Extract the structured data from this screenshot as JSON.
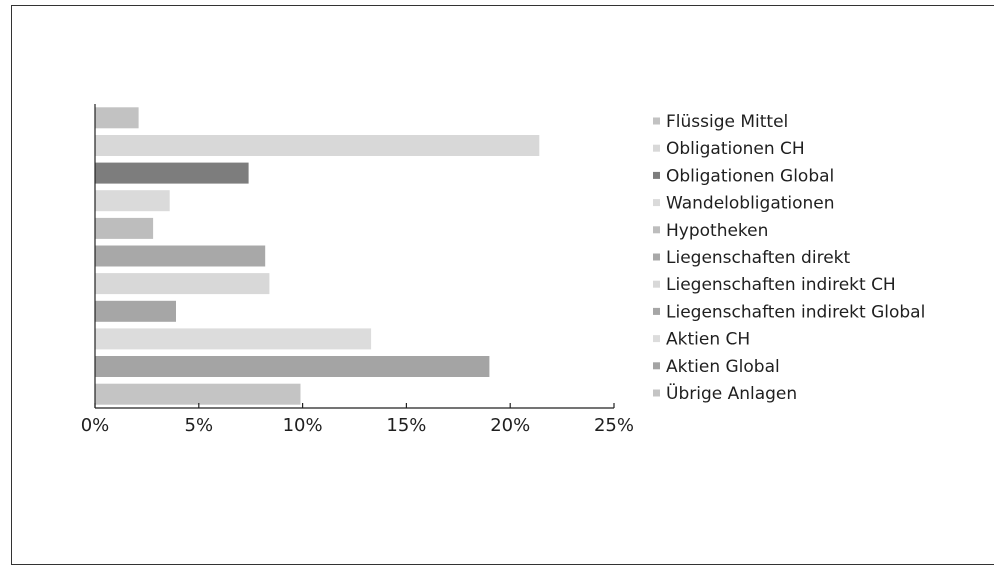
{
  "chart_data": {
    "type": "bar",
    "orientation": "horizontal",
    "categories": [
      "Flüssige Mittel",
      "Obligationen CH",
      "Obligationen Global",
      "Wandelobligationen",
      "Hypotheken",
      "Liegenschaften direkt",
      "Liegenschaften indirekt CH",
      "Liegenschaften indirekt Global",
      "Aktien CH",
      "Aktien Global",
      "Übrige Anlagen"
    ],
    "values": [
      2.1,
      21.4,
      7.4,
      3.6,
      2.8,
      8.2,
      8.4,
      3.9,
      13.3,
      19.0,
      9.9
    ],
    "colors": [
      "#c2c2c2",
      "#d8d8d8",
      "#7d7d7d",
      "#dadada",
      "#bdbdbd",
      "#a8a8a8",
      "#d8d8d8",
      "#a6a6a6",
      "#dcdcdc",
      "#a4a4a4",
      "#c4c4c4"
    ],
    "xlim": [
      0,
      25
    ],
    "xticks": [
      "0%",
      "5%",
      "10%",
      "15%",
      "20%",
      "25%"
    ],
    "xlabel": "",
    "ylabel": "",
    "title": "",
    "grid": false,
    "legend_position": "right"
  }
}
